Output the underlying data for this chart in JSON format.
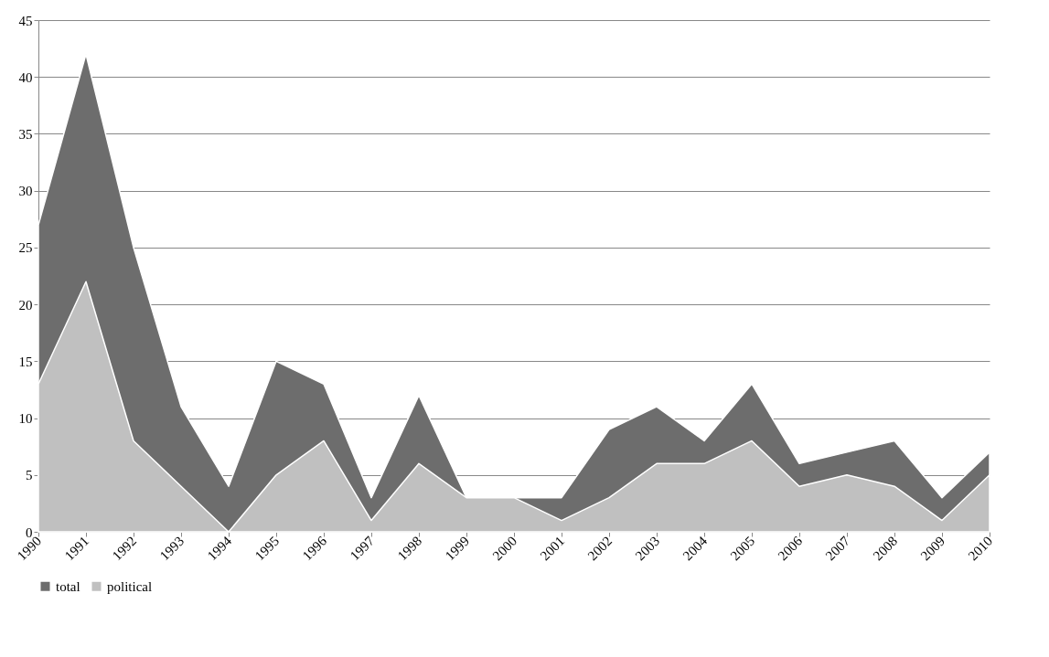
{
  "chart_data": {
    "type": "area",
    "categories": [
      "1990",
      "1991",
      "1992",
      "1993",
      "1994",
      "1995",
      "1996",
      "1997",
      "1998",
      "1999",
      "2000",
      "2001",
      "2002",
      "2003",
      "2004",
      "2005",
      "2006",
      "2007",
      "2008",
      "2009",
      "2010"
    ],
    "series": [
      {
        "name": "total",
        "color": "#6d6d6d",
        "values": [
          27,
          42,
          25,
          11,
          4,
          15,
          13,
          3,
          12,
          3,
          3,
          3,
          9,
          11,
          8,
          13,
          6,
          7,
          8,
          3,
          7
        ]
      },
      {
        "name": "political",
        "color": "#c0c0c0",
        "values": [
          13,
          22,
          8,
          4,
          0,
          5,
          8,
          1,
          6,
          3,
          3,
          1,
          3,
          6,
          6,
          8,
          4,
          5,
          4,
          1,
          5
        ]
      }
    ],
    "ylim": [
      0,
      45
    ],
    "yticks": [
      0,
      5,
      10,
      15,
      20,
      25,
      30,
      35,
      40,
      45
    ],
    "grid": "y",
    "legend": "bottom"
  }
}
